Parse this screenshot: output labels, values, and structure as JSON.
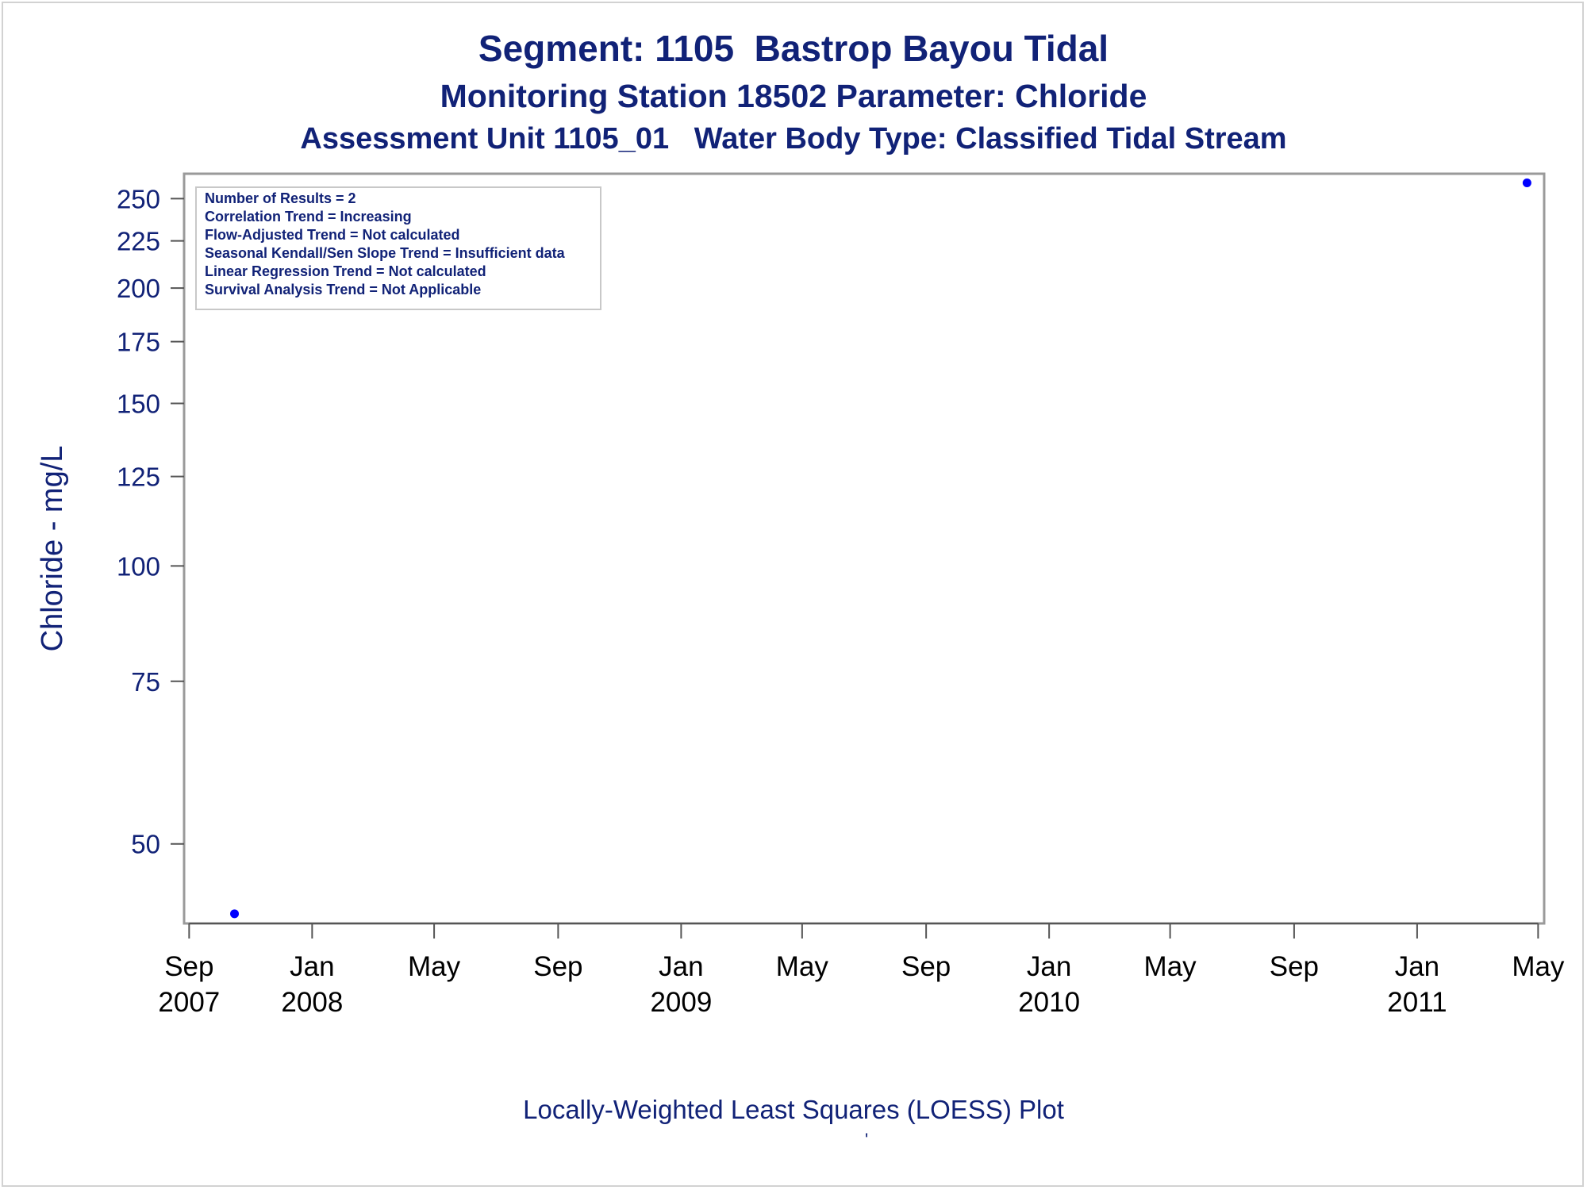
{
  "chart_data": {
    "type": "scatter",
    "title": "Segment: 1105  Bastrop Bayou Tidal",
    "subtitles": [
      "Monitoring Station 18502 Parameter: Chloride",
      "Assessment Unit 1105_01   Water Body Type: Classified Tidal Stream"
    ],
    "ylabel": "Chloride - mg/L",
    "xlabel": "",
    "y_scale": "log",
    "ylim": [
      41,
      266
    ],
    "xlim": [
      "2007-08-27",
      "2011-05-07"
    ],
    "y_ticks": [
      50,
      75,
      100,
      125,
      150,
      175,
      200,
      225,
      250
    ],
    "x_ticks": [
      {
        "date": "2007-09-01",
        "label": [
          "Sep",
          "2007"
        ]
      },
      {
        "date": "2008-01-01",
        "label": [
          "Jan",
          "2008"
        ]
      },
      {
        "date": "2008-05-01",
        "label": [
          "May",
          ""
        ]
      },
      {
        "date": "2008-09-01",
        "label": [
          "Sep",
          ""
        ]
      },
      {
        "date": "2009-01-01",
        "label": [
          "Jan",
          "2009"
        ]
      },
      {
        "date": "2009-05-01",
        "label": [
          "May",
          ""
        ]
      },
      {
        "date": "2009-09-01",
        "label": [
          "Sep",
          ""
        ]
      },
      {
        "date": "2010-01-01",
        "label": [
          "Jan",
          "2010"
        ]
      },
      {
        "date": "2010-05-01",
        "label": [
          "May",
          ""
        ]
      },
      {
        "date": "2010-09-01",
        "label": [
          "Sep",
          ""
        ]
      },
      {
        "date": "2011-01-01",
        "label": [
          "Jan",
          "2011"
        ]
      },
      {
        "date": "2011-05-01",
        "label": [
          "May",
          ""
        ]
      }
    ],
    "series": [
      {
        "points": [
          {
            "x": "2007-10-16",
            "y": 42
          },
          {
            "x": "2011-04-20",
            "y": 260
          }
        ],
        "color": "#0000ff"
      }
    ],
    "stats_box": [
      "Number of Results = 2",
      "Correlation Trend = Increasing",
      "Flow-Adjusted Trend = Not calculated",
      "Seasonal Kendall/Sen Slope Trend = Insufficient data",
      "Linear Regression Trend = Not calculated",
      "Survival Analysis Trend = Not Applicable"
    ],
    "grid": false,
    "footnote": "Locally-Weighted Least Squares (LOESS) Plot",
    "footnote_mark": "'"
  },
  "colors": {
    "text": "#112277",
    "axis": "#555555",
    "frame": "#9a9a9a",
    "marker": "#0000ff"
  }
}
